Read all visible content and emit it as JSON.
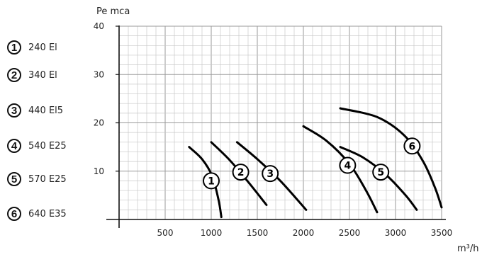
{
  "legend": [
    {
      "id": "1",
      "label": "240 El"
    },
    {
      "id": "2",
      "label": "340 El"
    },
    {
      "id": "3",
      "label": "440 El5"
    },
    {
      "id": "4",
      "label": "540 E25"
    },
    {
      "id": "5",
      "label": "570 E25"
    },
    {
      "id": "6",
      "label": "640 E35"
    }
  ],
  "chart_data": {
    "type": "line",
    "ylabel": "Pe mca",
    "xlabel": "m³/h",
    "xlim": [
      0,
      3500
    ],
    "ylim": [
      0,
      40
    ],
    "x_ticks": [
      500,
      1000,
      1500,
      2000,
      2500,
      3000,
      3500
    ],
    "y_ticks": [
      10,
      20,
      30,
      40
    ],
    "grid": true,
    "series": [
      {
        "name": "1",
        "points": [
          [
            760,
            15
          ],
          [
            900,
            12.5
          ],
          [
            1010,
            9
          ],
          [
            1080,
            4
          ],
          [
            1110,
            0.5
          ]
        ],
        "label_at": [
          1000,
          8
        ]
      },
      {
        "name": "2",
        "points": [
          [
            1000,
            16
          ],
          [
            1200,
            12.3
          ],
          [
            1400,
            7.8
          ],
          [
            1600,
            3
          ]
        ],
        "label_at": [
          1320,
          9.8
        ]
      },
      {
        "name": "3",
        "points": [
          [
            1280,
            16
          ],
          [
            1500,
            12.5
          ],
          [
            1750,
            8
          ],
          [
            2030,
            2
          ]
        ],
        "label_at": [
          1640,
          9.5
        ]
      },
      {
        "name": "4",
        "points": [
          [
            2000,
            19.3
          ],
          [
            2250,
            16.3
          ],
          [
            2500,
            11.5
          ],
          [
            2680,
            6
          ],
          [
            2800,
            1.5
          ]
        ],
        "label_at": [
          2480,
          11.2
        ]
      },
      {
        "name": "5",
        "points": [
          [
            2400,
            15
          ],
          [
            2650,
            12.8
          ],
          [
            2900,
            9.2
          ],
          [
            3110,
            5
          ],
          [
            3230,
            2
          ]
        ],
        "label_at": [
          2840,
          9.8
        ]
      },
      {
        "name": "6",
        "points": [
          [
            2400,
            23
          ],
          [
            2800,
            21.2
          ],
          [
            3100,
            17.3
          ],
          [
            3300,
            12
          ],
          [
            3430,
            6.5
          ],
          [
            3500,
            2.5
          ]
        ],
        "label_at": [
          3180,
          15.2
        ]
      }
    ]
  }
}
